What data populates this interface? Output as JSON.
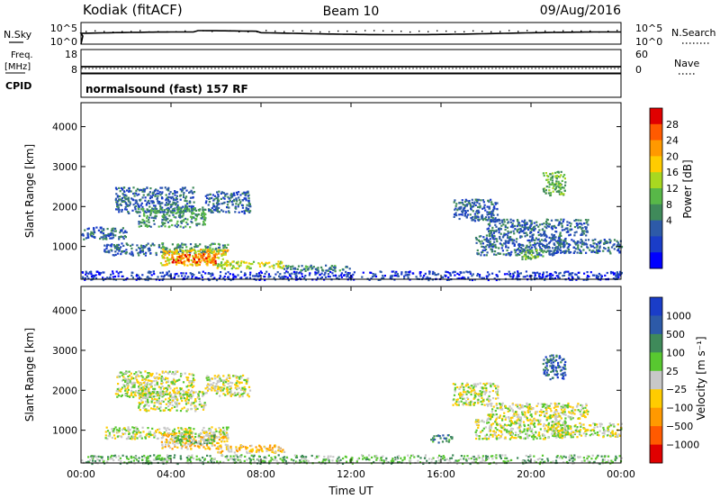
{
  "header": {
    "station": "Kodiak (fitACF)",
    "beam": "Beam 10",
    "date": "09/Aug/2016"
  },
  "top_panels": {
    "nsky_label": "N.Sky",
    "nsearch_label": "N.Search",
    "nsky_ticks": [
      "10^5",
      "10^0"
    ],
    "nsearch_ticks": [
      "10^5",
      "10^0"
    ],
    "freq_label_line1": "Freq.",
    "freq_label_line2": "[MHz]",
    "freq_ticks": [
      "18",
      "8"
    ],
    "nave_label": "Nave",
    "nave_ticks": [
      "60",
      "0"
    ],
    "cpid_label": "CPID",
    "cpid_text": "normalsound (fast) 157 RF"
  },
  "chart_data": [
    {
      "type": "heatmap",
      "quantity": "Power",
      "ylabel": "Slant Range [km]",
      "xlabel": "Time UT",
      "ylim": [
        180,
        4600
      ],
      "yticks": [
        1000,
        2000,
        3000,
        4000
      ],
      "xticks": [
        "00:00",
        "04:00",
        "08:00",
        "12:00",
        "16:00",
        "20:00",
        "00:00"
      ],
      "colorbar_label": "Power [dB]",
      "colorbar_ticks": [
        "28",
        "24",
        "20",
        "16",
        "12",
        "8",
        "4"
      ],
      "colorbar_colors": [
        "#e00000",
        "#ff5a00",
        "#ff9900",
        "#ffcc00",
        "#a8d820",
        "#58b848",
        "#3f8a5a",
        "#2d5aa8",
        "#1a3dc8",
        "#0000ff"
      ],
      "regions": [
        {
          "t0": 0.0,
          "t1": 2.0,
          "r0": 1200,
          "r1": 1500,
          "level": 2
        },
        {
          "t0": 1.5,
          "t1": 5.0,
          "r0": 1850,
          "r1": 2500,
          "level": 2
        },
        {
          "t0": 2.5,
          "t1": 5.5,
          "r0": 1500,
          "r1": 2000,
          "level": 3
        },
        {
          "t0": 5.5,
          "t1": 7.5,
          "r0": 1850,
          "r1": 2400,
          "level": 2
        },
        {
          "t0": 1.0,
          "t1": 3.5,
          "r0": 800,
          "r1": 1100,
          "level": 2
        },
        {
          "t0": 3.5,
          "t1": 6.5,
          "r0": 850,
          "r1": 1100,
          "level": 3
        },
        {
          "t0": 3.5,
          "t1": 6.5,
          "r0": 550,
          "r1": 950,
          "level": 6
        },
        {
          "t0": 4.0,
          "t1": 6.0,
          "r0": 600,
          "r1": 850,
          "level": 8
        },
        {
          "t0": 6.0,
          "t1": 9.0,
          "r0": 450,
          "r1": 650,
          "level": 5
        },
        {
          "t0": 9.0,
          "t1": 12.0,
          "r0": 400,
          "r1": 550,
          "level": 3
        },
        {
          "t0": 16.5,
          "t1": 18.5,
          "r0": 1650,
          "r1": 2200,
          "level": 2
        },
        {
          "t0": 18.0,
          "t1": 22.5,
          "r0": 1300,
          "r1": 1700,
          "level": 2
        },
        {
          "t0": 17.5,
          "t1": 21.5,
          "r0": 800,
          "r1": 1300,
          "level": 2
        },
        {
          "t0": 19.5,
          "t1": 20.5,
          "r0": 700,
          "r1": 950,
          "level": 4
        },
        {
          "t0": 21.0,
          "t1": 24.0,
          "r0": 850,
          "r1": 1200,
          "level": 2
        },
        {
          "t0": 20.5,
          "t1": 21.5,
          "r0": 2300,
          "r1": 2900,
          "level": 4
        },
        {
          "t0": 0.0,
          "t1": 24.0,
          "r0": 180,
          "r1": 400,
          "level": 1
        }
      ]
    },
    {
      "type": "heatmap",
      "quantity": "Velocity",
      "ylabel": "Slant Range [km]",
      "xlabel": "Time UT",
      "ylim": [
        180,
        4600
      ],
      "yticks": [
        1000,
        2000,
        3000,
        4000
      ],
      "xticks": [
        "00:00",
        "04:00",
        "08:00",
        "12:00",
        "16:00",
        "20:00",
        "00:00"
      ],
      "colorbar_label": "Velocity [m s⁻¹]",
      "colorbar_ticks": [
        "1000",
        "500",
        "100",
        "25",
        "−25",
        "−100",
        "−500",
        "−1000"
      ],
      "colorbar_colors": [
        "#1a3dc8",
        "#2d5aa8",
        "#3f8a5a",
        "#58c830",
        "#c8c8c8",
        "#ffcc00",
        "#ff9900",
        "#ff5a00",
        "#e00000"
      ],
      "regions": [
        {
          "t0": 1.5,
          "t1": 5.0,
          "r0": 1850,
          "r1": 2500,
          "level": 4
        },
        {
          "t0": 2.5,
          "t1": 5.5,
          "r0": 1500,
          "r1": 2000,
          "level": 4
        },
        {
          "t0": 5.5,
          "t1": 7.5,
          "r0": 1850,
          "r1": 2400,
          "level": 4
        },
        {
          "t0": 1.0,
          "t1": 3.5,
          "r0": 800,
          "r1": 1100,
          "level": 4
        },
        {
          "t0": 3.5,
          "t1": 6.5,
          "r0": 850,
          "r1": 1100,
          "level": 4
        },
        {
          "t0": 3.5,
          "t1": 6.5,
          "r0": 550,
          "r1": 950,
          "level": 3
        },
        {
          "t0": 4.0,
          "t1": 6.0,
          "r0": 650,
          "r1": 900,
          "level": 5
        },
        {
          "t0": 6.0,
          "t1": 9.0,
          "r0": 450,
          "r1": 650,
          "level": 3
        },
        {
          "t0": 16.5,
          "t1": 18.5,
          "r0": 1650,
          "r1": 2200,
          "level": 4
        },
        {
          "t0": 18.0,
          "t1": 22.5,
          "r0": 1300,
          "r1": 1700,
          "level": 4
        },
        {
          "t0": 17.5,
          "t1": 21.5,
          "r0": 800,
          "r1": 1300,
          "level": 4
        },
        {
          "t0": 15.5,
          "t1": 16.5,
          "r0": 700,
          "r1": 900,
          "level": 6
        },
        {
          "t0": 21.0,
          "t1": 24.0,
          "r0": 850,
          "r1": 1200,
          "level": 4
        },
        {
          "t0": 20.5,
          "t1": 21.5,
          "r0": 2300,
          "r1": 2900,
          "level": 7
        },
        {
          "t0": 0.0,
          "t1": 24.0,
          "r0": 180,
          "r1": 400,
          "level": 5
        }
      ]
    }
  ]
}
